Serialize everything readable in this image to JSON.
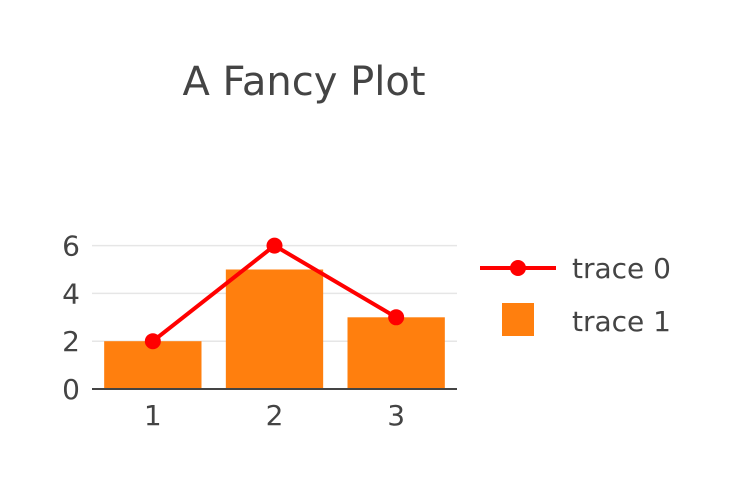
{
  "chart_data": {
    "type": "bar",
    "title": "A Fancy Plot",
    "xlabel": "",
    "ylabel": "",
    "categories": [
      "1",
      "2",
      "3"
    ],
    "x": [
      1,
      2,
      3
    ],
    "ylim": [
      0,
      6.5
    ],
    "yticks": [
      0,
      2,
      4,
      6
    ],
    "grid": true,
    "legend_position": "right",
    "series": [
      {
        "name": "trace 0",
        "type": "line",
        "mode": "lines+markers",
        "values": [
          2,
          6,
          3
        ],
        "color": "#ff0000"
      },
      {
        "name": "trace 1",
        "type": "bar",
        "values": [
          2,
          5,
          3
        ],
        "color": "#ff7f0e"
      }
    ]
  }
}
